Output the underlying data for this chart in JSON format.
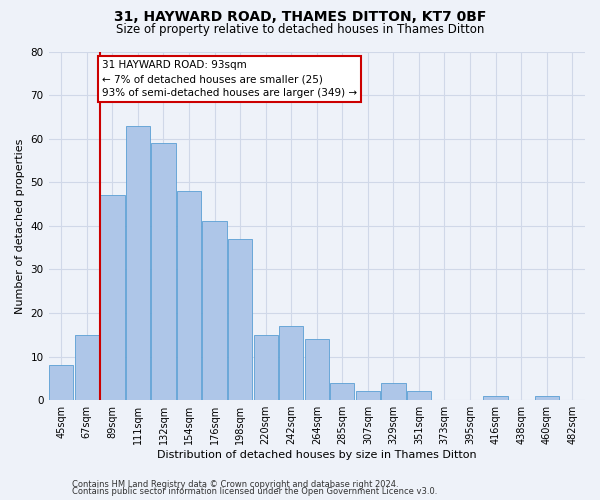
{
  "title_line1": "31, HAYWARD ROAD, THAMES DITTON, KT7 0BF",
  "title_line2": "Size of property relative to detached houses in Thames Ditton",
  "xlabel": "Distribution of detached houses by size in Thames Ditton",
  "ylabel": "Number of detached properties",
  "categories": [
    "45sqm",
    "67sqm",
    "89sqm",
    "111sqm",
    "132sqm",
    "154sqm",
    "176sqm",
    "198sqm",
    "220sqm",
    "242sqm",
    "264sqm",
    "285sqm",
    "307sqm",
    "329sqm",
    "351sqm",
    "373sqm",
    "395sqm",
    "416sqm",
    "438sqm",
    "460sqm",
    "482sqm"
  ],
  "values": [
    8,
    15,
    47,
    63,
    59,
    48,
    41,
    37,
    15,
    17,
    14,
    4,
    2,
    4,
    2,
    0,
    0,
    1,
    0,
    1,
    0
  ],
  "bar_color": "#aec6e8",
  "bar_edge_color": "#5a9fd4",
  "grid_color": "#d0d8e8",
  "background_color": "#eef2f9",
  "vline_x_index": 1.5,
  "annotation_text": "31 HAYWARD ROAD: 93sqm\n← 7% of detached houses are smaller (25)\n93% of semi-detached houses are larger (349) →",
  "annotation_box_color": "#ffffff",
  "annotation_box_edgecolor": "#cc0000",
  "vline_color": "#cc0000",
  "ylim": [
    0,
    80
  ],
  "yticks": [
    0,
    10,
    20,
    30,
    40,
    50,
    60,
    70,
    80
  ],
  "footer1": "Contains HM Land Registry data © Crown copyright and database right 2024.",
  "footer2": "Contains public sector information licensed under the Open Government Licence v3.0.",
  "title_fontsize": 10,
  "subtitle_fontsize": 8.5,
  "ylabel_fontsize": 8,
  "xlabel_fontsize": 8,
  "tick_fontsize": 7,
  "annotation_fontsize": 7.5,
  "footer_fontsize": 6
}
